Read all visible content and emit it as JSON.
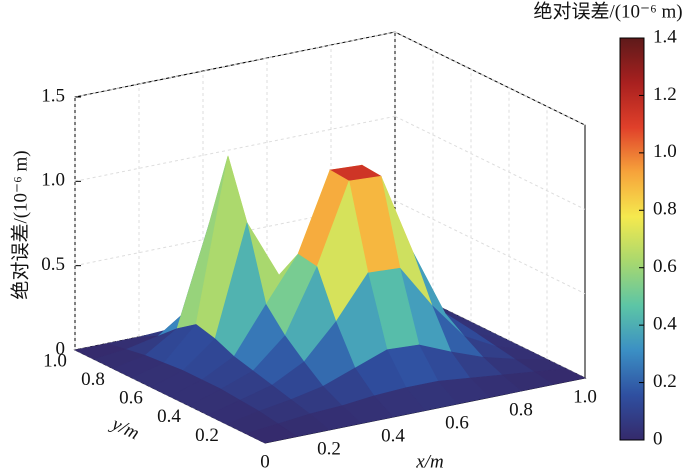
{
  "chart_data": {
    "type": "surface3d",
    "zlabel": "绝对误差/(10⁻⁶ m)",
    "xlabel": "x/m",
    "ylabel": "y/m",
    "colorbar_title": "绝对误差/(10⁻⁶ m)",
    "x": [
      0,
      0.1,
      0.2,
      0.3,
      0.4,
      0.5,
      0.6,
      0.7,
      0.8,
      0.9,
      1
    ],
    "y": [
      0,
      0.1,
      0.2,
      0.3,
      0.4,
      0.5,
      0.6,
      0.7,
      0.8,
      0.9,
      1
    ],
    "z": [
      [
        0,
        0,
        0,
        0,
        0,
        0,
        0,
        0,
        0,
        0,
        0
      ],
      [
        0,
        0.02,
        0.04,
        0.05,
        0.07,
        0.08,
        0.08,
        0.06,
        0.04,
        0.02,
        0
      ],
      [
        0,
        0.04,
        0.07,
        0.11,
        0.18,
        0.25,
        0.24,
        0.16,
        0.09,
        0.04,
        0
      ],
      [
        0,
        0.05,
        0.1,
        0.2,
        0.4,
        0.65,
        0.64,
        0.38,
        0.16,
        0.06,
        0
      ],
      [
        0,
        0.06,
        0.13,
        0.3,
        0.67,
        1.14,
        1.13,
        0.64,
        0.24,
        0.08,
        0
      ],
      [
        0,
        0.06,
        0.16,
        0.43,
        0.69,
        1.15,
        1.14,
        0.65,
        0.25,
        0.08,
        0
      ],
      [
        0,
        0.06,
        0.21,
        0.86,
        0.51,
        0.67,
        0.66,
        0.4,
        0.18,
        0.07,
        0
      ],
      [
        0,
        0.05,
        0.24,
        1.2,
        0.36,
        0.29,
        0.28,
        0.2,
        0.11,
        0.05,
        0
      ],
      [
        0,
        0.04,
        0.16,
        0.74,
        0.21,
        0.14,
        0.13,
        0.1,
        0.07,
        0.04,
        0
      ],
      [
        0,
        0.02,
        0.06,
        0.19,
        0.08,
        0.06,
        0.06,
        0.05,
        0.04,
        0.02,
        0
      ],
      [
        0,
        0,
        0,
        0.01,
        0,
        0,
        0,
        0,
        0,
        0,
        0
      ]
    ],
    "xlim": [
      0,
      1
    ],
    "ylim": [
      0,
      1
    ],
    "zlim": [
      0,
      1.5
    ],
    "clim": [
      0,
      1.4
    ],
    "xticks": [
      0,
      0.2,
      0.4,
      0.6,
      0.8,
      {
        "value": 1,
        "label": "1.0"
      }
    ],
    "yticks": [
      0.2,
      0.4,
      0.6,
      0.8,
      {
        "value": 1,
        "label": "1.0"
      }
    ],
    "zticks": [
      0,
      0.5,
      {
        "value": 1,
        "label": "1.0"
      },
      1.5
    ],
    "cticks": [
      0,
      0.2,
      0.4,
      0.6,
      0.8,
      {
        "value": 1,
        "label": "1.0"
      },
      1.2,
      1.4
    ],
    "colormap": [
      "#352a6b",
      "#2f4fa0",
      "#3b8fc4",
      "#5cc5a6",
      "#a9d86e",
      "#f5e94e",
      "#f6a33b",
      "#e0402a",
      "#a8201f",
      "#5e1a1a"
    ],
    "grid": true
  }
}
